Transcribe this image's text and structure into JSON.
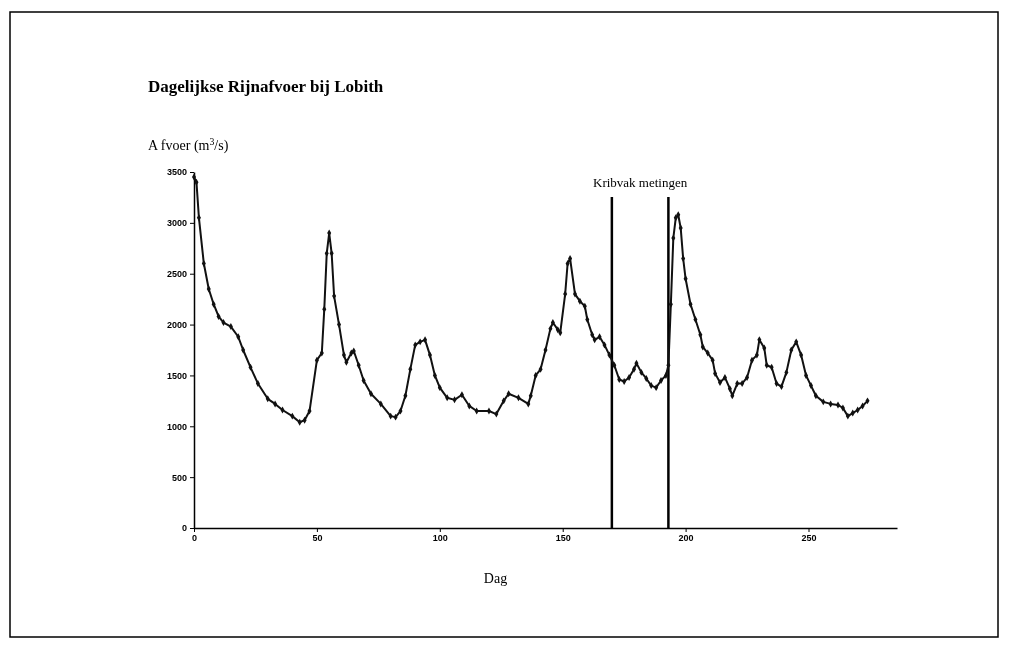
{
  "chart_data": {
    "type": "line",
    "title": "Dagelijkse Rijnafvoer bij Lobith",
    "ylabel": "A fvoer (m$^{3}$/s)",
    "xlabel": "Dag",
    "x": [
      0,
      1,
      2,
      4,
      6,
      8,
      10,
      12,
      15,
      18,
      20,
      23,
      26,
      30,
      33,
      36,
      40,
      43,
      45,
      47,
      50,
      52,
      53,
      54,
      55,
      56,
      57,
      59,
      61,
      62,
      64,
      65,
      67,
      69,
      72,
      76,
      80,
      82,
      84,
      86,
      88,
      90,
      92,
      94,
      96,
      98,
      100,
      103,
      106,
      109,
      112,
      115,
      120,
      123,
      126,
      128,
      132,
      136,
      137,
      139,
      141,
      143,
      145,
      146,
      148,
      149,
      151,
      152,
      153,
      155,
      157,
      159,
      160,
      162,
      163,
      165,
      167,
      169,
      171,
      173,
      175,
      177,
      179,
      180,
      182,
      184,
      186,
      188,
      190,
      192,
      193,
      194,
      195,
      196,
      197,
      198,
      199,
      200,
      202,
      204,
      206,
      207,
      209,
      211,
      212,
      214,
      216,
      218,
      219,
      221,
      223,
      225,
      227,
      229,
      230,
      232,
      233,
      235,
      237,
      239,
      241,
      243,
      245,
      247,
      249,
      251,
      253,
      256,
      259,
      262,
      264,
      266,
      268,
      270,
      272,
      274
    ],
    "series": [
      {
        "color": "#111111",
        "values": [
          3450,
          3400,
          3050,
          2600,
          2350,
          2200,
          2080,
          2020,
          1980,
          1880,
          1750,
          1580,
          1420,
          1270,
          1220,
          1160,
          1100,
          1040,
          1060,
          1150,
          1650,
          1720,
          2150,
          2700,
          2900,
          2700,
          2280,
          2000,
          1700,
          1630,
          1720,
          1740,
          1600,
          1450,
          1320,
          1220,
          1100,
          1090,
          1150,
          1300,
          1560,
          1800,
          1830,
          1850,
          1700,
          1500,
          1380,
          1280,
          1260,
          1310,
          1200,
          1150,
          1150,
          1120,
          1250,
          1320,
          1280,
          1220,
          1300,
          1500,
          1560,
          1750,
          1960,
          2020,
          1950,
          1920,
          2300,
          2600,
          2650,
          2300,
          2230,
          2180,
          2050,
          1900,
          1850,
          1880,
          1800,
          1700,
          1600,
          1460,
          1440,
          1480,
          1560,
          1620,
          1530,
          1470,
          1400,
          1380,
          1450,
          1500,
          1600,
          2200,
          2850,
          3050,
          3080,
          2950,
          2650,
          2450,
          2200,
          2050,
          1900,
          1780,
          1720,
          1650,
          1520,
          1430,
          1480,
          1370,
          1300,
          1420,
          1420,
          1480,
          1650,
          1700,
          1850,
          1770,
          1600,
          1580,
          1420,
          1390,
          1530,
          1750,
          1830,
          1700,
          1500,
          1400,
          1300,
          1240,
          1220,
          1210,
          1180,
          1100,
          1130,
          1160,
          1200,
          1250
        ]
      }
    ],
    "xlim": [
      0,
      286
    ],
    "xticks": [
      0,
      50,
      100,
      150,
      200,
      250
    ],
    "ylim": [
      0,
      3500
    ],
    "yticks": [
      0,
      500,
      1000,
      1500,
      2000,
      2500,
      3000,
      3500
    ],
    "ref_lines": [
      {
        "axis": "x",
        "value": 170,
        "color": "#000000"
      },
      {
        "axis": "x",
        "value": 193,
        "color": "#000000"
      }
    ],
    "annotations": [
      "Kribvak metingen"
    ],
    "marker": "diamond",
    "line_style": "solid",
    "grid": false
  }
}
